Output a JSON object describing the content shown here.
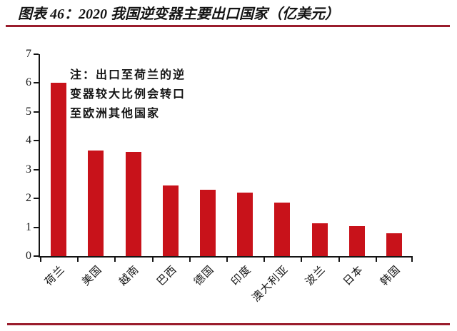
{
  "header": {
    "title": "图表 46：2020 我国逆变器主要出口国家（亿美元）"
  },
  "chart_data": {
    "type": "bar",
    "title": "图表 46：2020 我国逆变器主要出口国家（亿美元）",
    "categories": [
      "荷兰",
      "美国",
      "越南",
      "巴西",
      "德国",
      "印度",
      "澳大利亚",
      "波兰",
      "日本",
      "韩国"
    ],
    "values": [
      6.0,
      3.65,
      3.6,
      2.45,
      2.3,
      2.2,
      1.85,
      1.15,
      1.05,
      0.8
    ],
    "xlabel": "",
    "ylabel": "",
    "ylim": [
      0,
      7
    ],
    "yticks": [
      0,
      1,
      2,
      3,
      4,
      5,
      6,
      7
    ],
    "grid": false,
    "legend": "none",
    "annotation_lines": [
      "注：出口至荷兰的逆",
      "变器较大比例会转口",
      "至欧洲其他国家"
    ]
  },
  "colors": {
    "bar": "#c8121a",
    "accent_rule": "#9a1c2c",
    "axis": "#141414",
    "text": "#141414"
  }
}
